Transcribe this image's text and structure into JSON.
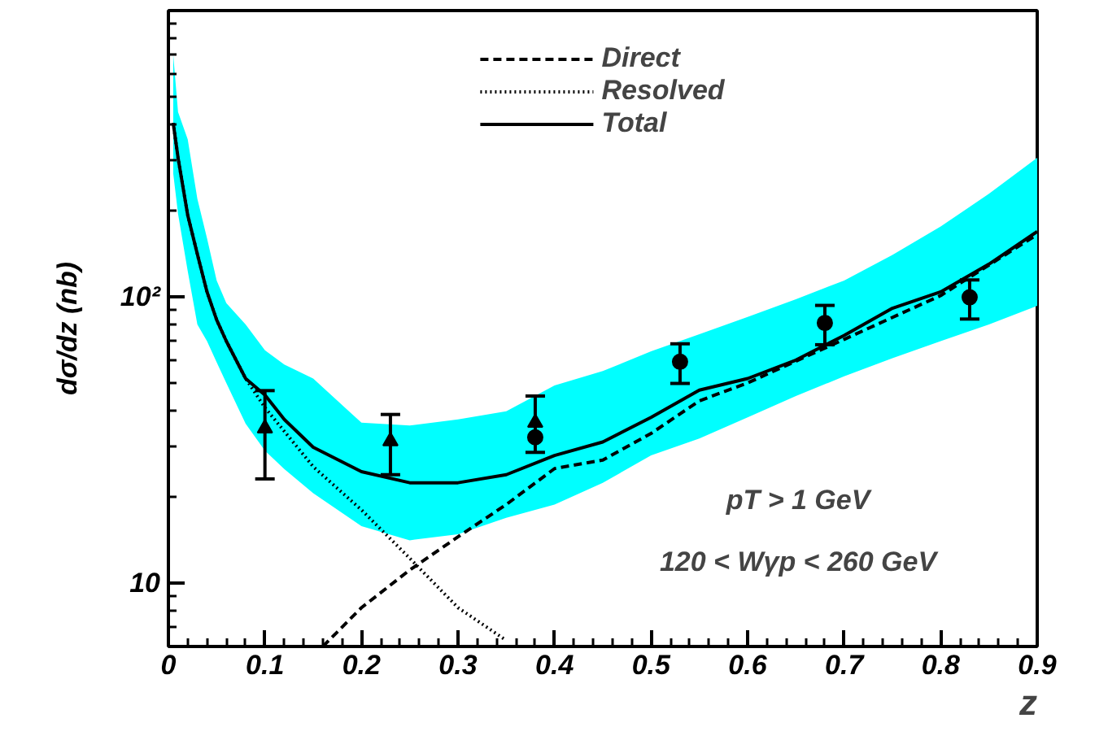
{
  "chart_data": {
    "type": "line",
    "xlabel": "z",
    "ylabel": "dσ/dz (nb)",
    "log": "y",
    "legend": "top",
    "grid": false,
    "xlim": [
      0,
      0.9
    ],
    "xticks": [
      0,
      0.1,
      0.2,
      0.3,
      0.4,
      0.5,
      0.6,
      0.7,
      0.8,
      0.9
    ],
    "ylim": [
      6,
      1000
    ],
    "yticks": [
      10,
      {
        "value": 100,
        "label": "10²"
      }
    ],
    "series": [
      {
        "name": "Direct",
        "line_style": "dashed",
        "color": "#000000",
        "x": [
          0.16,
          0.2,
          0.25,
          0.3,
          0.35,
          0.4,
          0.45,
          0.5,
          0.55,
          0.6,
          0.7,
          0.8,
          0.9
        ],
        "values": [
          6,
          8.2,
          11.1,
          14.5,
          18.8,
          25.1,
          26.9,
          33.3,
          43.3,
          50,
          71,
          101,
          165
        ]
      },
      {
        "name": "Resolved",
        "line_style": "dotted",
        "color": "#000000",
        "x": [
          0.005,
          0.01,
          0.02,
          0.03,
          0.04,
          0.05,
          0.06,
          0.08,
          0.1,
          0.15,
          0.2,
          0.25,
          0.3,
          0.35
        ],
        "values": [
          405,
          306,
          193,
          141,
          104,
          83,
          70,
          51.8,
          41,
          25.5,
          18,
          12.2,
          8.2,
          6.3
        ]
      },
      {
        "name": "Total",
        "line_style": "solid",
        "color": "#000000",
        "x": [
          0.005,
          0.01,
          0.02,
          0.03,
          0.04,
          0.05,
          0.06,
          0.08,
          0.1,
          0.12,
          0.15,
          0.2,
          0.25,
          0.3,
          0.35,
          0.4,
          0.45,
          0.5,
          0.55,
          0.6,
          0.65,
          0.7,
          0.75,
          0.8,
          0.85,
          0.9
        ],
        "values": [
          405,
          306,
          193,
          141,
          104,
          83,
          70,
          51.8,
          45.4,
          37.3,
          29.8,
          24.5,
          22.4,
          22.4,
          23.9,
          27.9,
          31.1,
          37.9,
          47.2,
          51.8,
          60.1,
          73.3,
          91.2,
          104,
          130,
          169
        ],
        "lower": [
          270,
          195,
          123,
          80,
          70,
          59,
          50,
          36,
          29,
          25,
          20.6,
          15.8,
          14.1,
          14.8,
          16.9,
          18.8,
          22.4,
          27.9,
          32,
          37.9,
          45,
          52.7,
          61,
          70,
          80,
          93
        ],
        "upper": [
          701,
          442,
          355,
          220,
          160,
          114,
          95,
          80,
          65,
          58,
          51.8,
          36.3,
          35.5,
          37.3,
          39.8,
          49,
          55,
          64.5,
          74,
          85,
          98,
          114,
          140,
          176,
          229,
          306
        ]
      },
      {
        "type": "scatter",
        "marker": "triangle",
        "color": "#000000",
        "x": [
          0.1,
          0.23,
          0.38
        ],
        "values": [
          34.7,
          31.3,
          36.3
        ],
        "errors": [
          [
            23.1,
            47
          ],
          [
            23.9,
            38.8
          ],
          null
        ]
      },
      {
        "type": "scatter",
        "marker": "circle",
        "color": "#000000",
        "x": [
          0.38,
          0.53,
          0.68,
          0.83
        ],
        "values": [
          32.3,
          59.3,
          81,
          99.6
        ],
        "errors": [
          [
            28.6,
            45
          ],
          [
            49.8,
            68.5
          ],
          [
            68,
            93.3
          ],
          [
            83.6,
            114.5
          ]
        ]
      }
    ],
    "annotations": [
      "pT > 1 GeV",
      "120 < Wγp < 260 GeV"
    ]
  }
}
